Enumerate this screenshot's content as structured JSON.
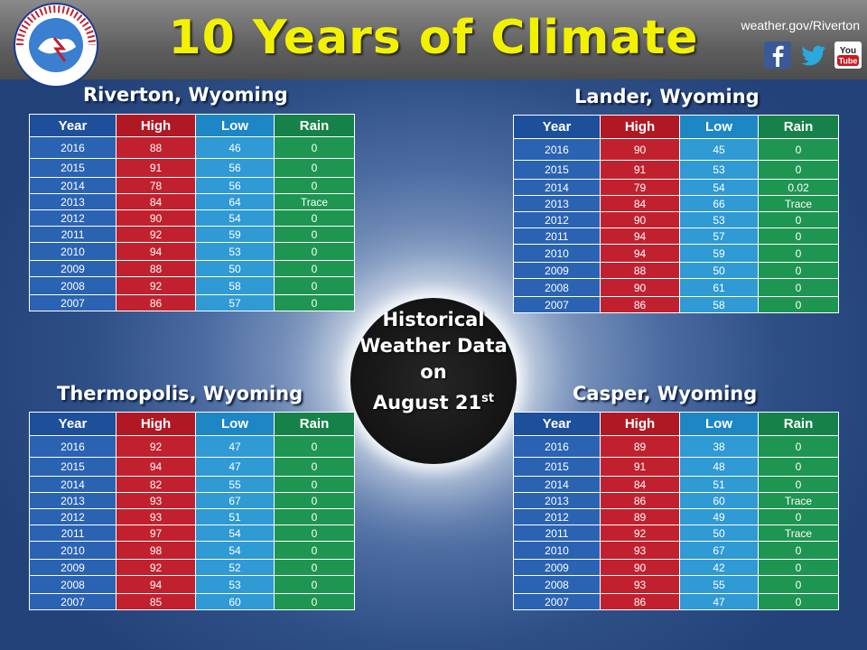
{
  "header": {
    "title": "10 Years of Climate",
    "url": "weather.gov/Riverton",
    "logo_text": "NATIONAL WEATHER SERVICE",
    "social": [
      "facebook-icon",
      "twitter-icon",
      "youtube-icon"
    ]
  },
  "center": {
    "line1": "Historical",
    "line2": "Weather Data",
    "line3": "on",
    "line4": "August 21",
    "line4_sup": "st"
  },
  "columns": [
    "Year",
    "High",
    "Low",
    "Rain"
  ],
  "colors": {
    "year": "#2a63b2",
    "high": "#c1212e",
    "low": "#2f9ad4",
    "rain": "#1f9552",
    "title": "#f2f200"
  },
  "cities": {
    "riverton": {
      "name": "Riverton, Wyoming",
      "rows": [
        [
          "2016",
          "88",
          "46",
          "0"
        ],
        [
          "2015",
          "91",
          "56",
          "0"
        ],
        [
          "2014",
          "78",
          "56",
          "0"
        ],
        [
          "2013",
          "84",
          "64",
          "Trace"
        ],
        [
          "2012",
          "90",
          "54",
          "0"
        ],
        [
          "2011",
          "92",
          "59",
          "0"
        ],
        [
          "2010",
          "94",
          "53",
          "0"
        ],
        [
          "2009",
          "88",
          "50",
          "0"
        ],
        [
          "2008",
          "92",
          "58",
          "0"
        ],
        [
          "2007",
          "86",
          "57",
          "0"
        ]
      ]
    },
    "lander": {
      "name": "Lander, Wyoming",
      "rows": [
        [
          "2016",
          "90",
          "45",
          "0"
        ],
        [
          "2015",
          "91",
          "53",
          "0"
        ],
        [
          "2014",
          "79",
          "54",
          "0.02"
        ],
        [
          "2013",
          "84",
          "66",
          "Trace"
        ],
        [
          "2012",
          "90",
          "53",
          "0"
        ],
        [
          "2011",
          "94",
          "57",
          "0"
        ],
        [
          "2010",
          "94",
          "59",
          "0"
        ],
        [
          "2009",
          "88",
          "50",
          "0"
        ],
        [
          "2008",
          "90",
          "61",
          "0"
        ],
        [
          "2007",
          "86",
          "58",
          "0"
        ]
      ]
    },
    "thermopolis": {
      "name": "Thermopolis, Wyoming",
      "rows": [
        [
          "2016",
          "92",
          "47",
          "0"
        ],
        [
          "2015",
          "94",
          "47",
          "0"
        ],
        [
          "2014",
          "82",
          "55",
          "0"
        ],
        [
          "2013",
          "93",
          "67",
          "0"
        ],
        [
          "2012",
          "93",
          "51",
          "0"
        ],
        [
          "2011",
          "97",
          "54",
          "0"
        ],
        [
          "2010",
          "98",
          "54",
          "0"
        ],
        [
          "2009",
          "92",
          "52",
          "0"
        ],
        [
          "2008",
          "94",
          "53",
          "0"
        ],
        [
          "2007",
          "85",
          "60",
          "0"
        ]
      ]
    },
    "casper": {
      "name": "Casper, Wyoming",
      "rows": [
        [
          "2016",
          "89",
          "38",
          "0"
        ],
        [
          "2015",
          "91",
          "48",
          "0"
        ],
        [
          "2014",
          "84",
          "51",
          "0"
        ],
        [
          "2013",
          "86",
          "60",
          "Trace"
        ],
        [
          "2012",
          "89",
          "49",
          "0"
        ],
        [
          "2011",
          "92",
          "50",
          "Trace"
        ],
        [
          "2010",
          "93",
          "67",
          "0"
        ],
        [
          "2009",
          "90",
          "42",
          "0"
        ],
        [
          "2008",
          "93",
          "55",
          "0"
        ],
        [
          "2007",
          "86",
          "47",
          "0"
        ]
      ]
    }
  }
}
